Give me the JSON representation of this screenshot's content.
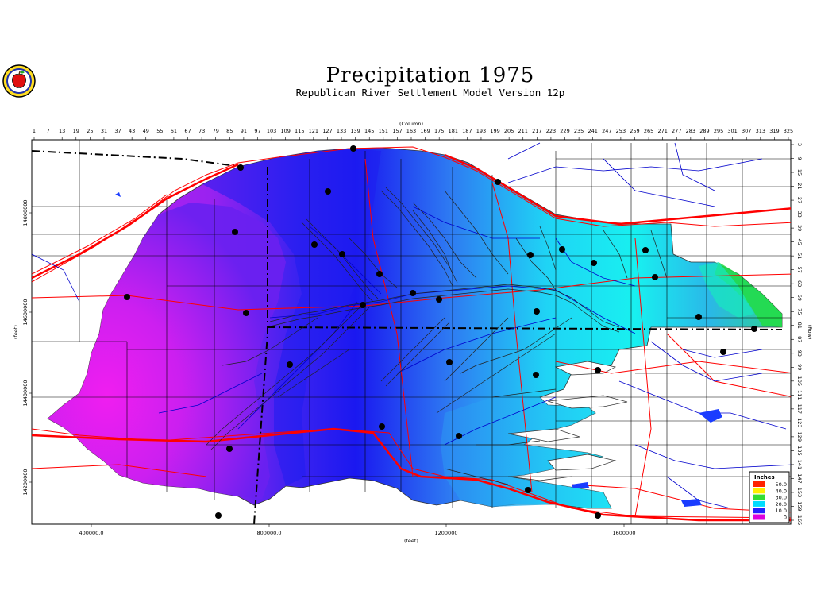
{
  "header": {
    "title": "Precipitation  1975",
    "subtitle": "Republican  River  Settlement  Model  Version  12p"
  },
  "axes": {
    "top_title": "(Column)",
    "right_title": "(Row)",
    "left_title": "(feet)",
    "bottom_title": "(feet)",
    "columns": [
      "1",
      "7",
      "13",
      "19",
      "25",
      "31",
      "37",
      "43",
      "49",
      "55",
      "61",
      "67",
      "73",
      "79",
      "85",
      "91",
      "97",
      "103",
      "109",
      "115",
      "121",
      "127",
      "133",
      "139",
      "145",
      "151",
      "157",
      "163",
      "169",
      "175",
      "181",
      "187",
      "193",
      "199",
      "205",
      "211",
      "217",
      "223",
      "229",
      "235",
      "241",
      "247",
      "253",
      "259",
      "265",
      "271",
      "277",
      "283",
      "289",
      "295",
      "301",
      "307",
      "313",
      "319",
      "325"
    ],
    "rows": [
      "3",
      "9",
      "15",
      "21",
      "27",
      "33",
      "39",
      "45",
      "51",
      "57",
      "63",
      "69",
      "75",
      "81",
      "87",
      "93",
      "99",
      "105",
      "111",
      "117",
      "123",
      "129",
      "135",
      "141",
      "147",
      "153",
      "159",
      "165"
    ],
    "x_ticks": [
      "400000.0",
      "800000.0",
      "1200000",
      "1600000"
    ],
    "y_ticks": [
      "14800000",
      "14600000",
      "14400000",
      "14200000"
    ]
  },
  "legend": {
    "title": "Inches",
    "items": [
      {
        "label": "50.0",
        "color": "#ff2200"
      },
      {
        "label": "40.0",
        "color": "#ffee00"
      },
      {
        "label": "30.0",
        "color": "#33dd33"
      },
      {
        "label": "20.0",
        "color": "#00ddff"
      },
      {
        "label": "10.0",
        "color": "#2222ff"
      },
      {
        "label": "0",
        "color": "#dd00dd"
      }
    ]
  },
  "colors": {
    "precip_low": "#f21af0",
    "precip_mid_low": "#9a1ff0",
    "precip_mid": "#1f2cf0",
    "precip_high": "#12e8f2",
    "precip_very_high": "#2fc93a",
    "roads": "#ff0000",
    "rivers": "#0000cc"
  },
  "icons": {
    "logo": "apple-logo-icon"
  }
}
